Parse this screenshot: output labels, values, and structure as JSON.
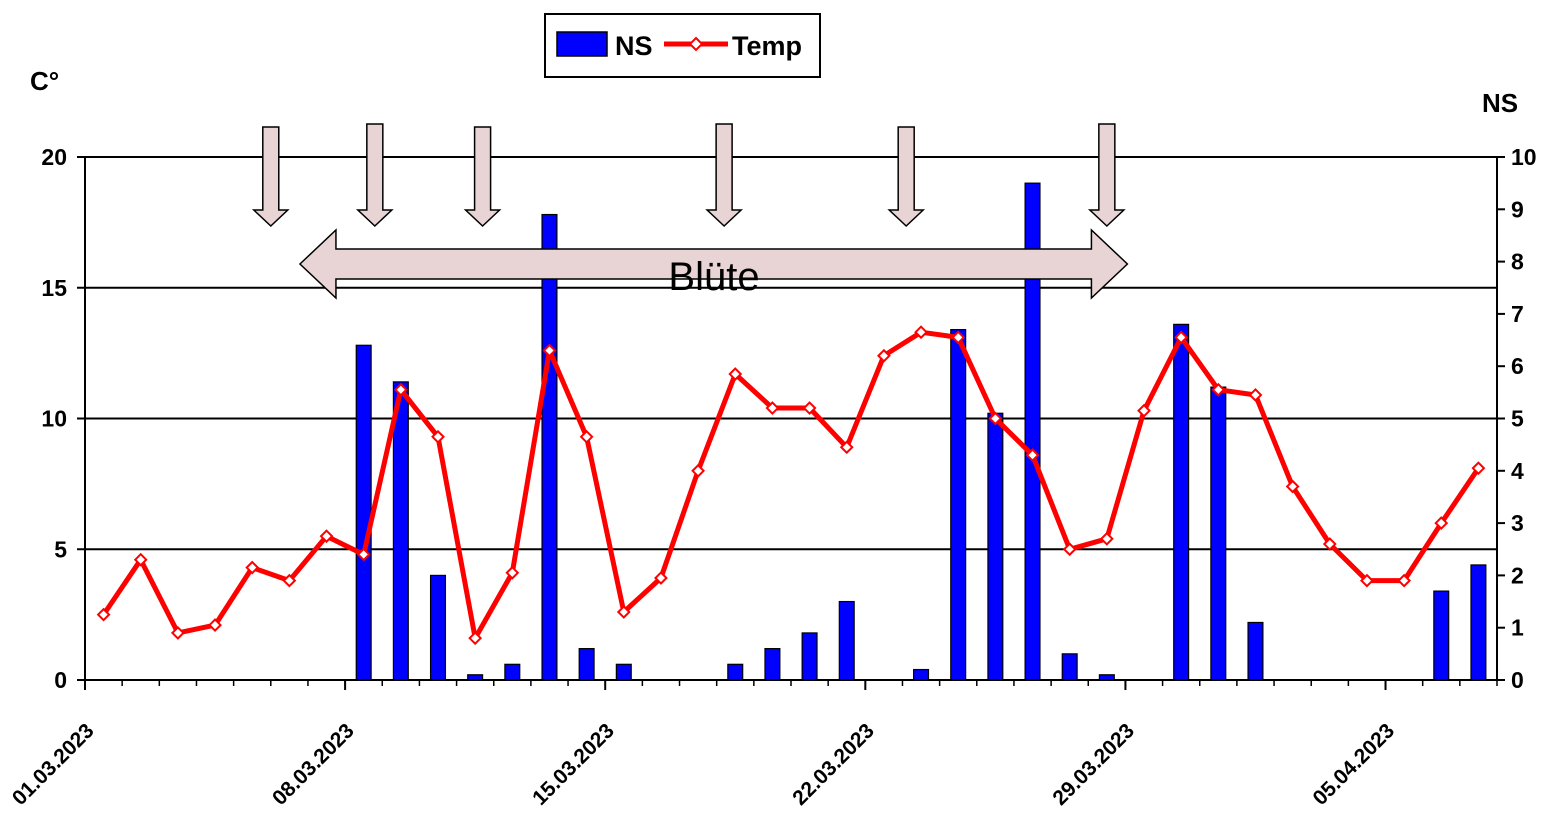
{
  "chart_data": {
    "type": "bar+line",
    "x": [
      "01.03.2023",
      "02.03.2023",
      "03.03.2023",
      "04.03.2023",
      "05.03.2023",
      "06.03.2023",
      "07.03.2023",
      "08.03.2023",
      "09.03.2023",
      "10.03.2023",
      "11.03.2023",
      "12.03.2023",
      "13.03.2023",
      "14.03.2023",
      "15.03.2023",
      "16.03.2023",
      "17.03.2023",
      "18.03.2023",
      "19.03.2023",
      "20.03.2023",
      "21.03.2023",
      "22.03.2023",
      "23.03.2023",
      "24.03.2023",
      "25.03.2023",
      "26.03.2023",
      "27.03.2023",
      "28.03.2023",
      "29.03.2023",
      "30.03.2023",
      "31.03.2023",
      "01.04.2023",
      "02.04.2023",
      "03.04.2023",
      "04.04.2023",
      "05.04.2023",
      "06.04.2023",
      "07.04.2023"
    ],
    "x_tick_labels": [
      "01.03.2023",
      "08.03.2023",
      "15.03.2023",
      "22.03.2023",
      "29.03.2023",
      "05.04.2023"
    ],
    "x_tick_label_indices": [
      0,
      7,
      14,
      21,
      28,
      35
    ],
    "series": [
      {
        "name": "NS",
        "type": "bar",
        "axis": "right",
        "color": "#0000ff",
        "values": [
          0,
          0,
          0,
          0,
          0,
          0,
          0,
          6.4,
          5.7,
          2.0,
          0.1,
          0.3,
          8.9,
          0.6,
          0.3,
          0,
          0,
          0.3,
          0.6,
          0.9,
          1.5,
          0,
          0.2,
          6.7,
          5.1,
          9.5,
          0.5,
          0.1,
          0,
          6.8,
          5.6,
          1.1,
          0,
          0,
          0,
          0,
          1.7,
          2.2
        ]
      },
      {
        "name": "Temp",
        "type": "line",
        "axis": "left",
        "color": "#ff0000",
        "values": [
          2.5,
          4.6,
          1.8,
          2.1,
          4.3,
          3.8,
          5.5,
          4.8,
          11.1,
          9.3,
          1.6,
          4.1,
          12.6,
          9.3,
          2.6,
          3.9,
          8.0,
          11.7,
          10.4,
          10.4,
          8.9,
          12.4,
          13.3,
          13.1,
          10.0,
          8.6,
          5.0,
          5.4,
          10.3,
          13.1,
          11.1,
          10.9,
          7.4,
          5.2,
          3.8,
          3.8,
          6.0,
          8.1
        ]
      }
    ],
    "y_left": {
      "label": "C°",
      "range": [
        0,
        20
      ],
      "ticks": [
        "0",
        "5",
        "10",
        "15",
        "20"
      ]
    },
    "y_right": {
      "label": "NS",
      "range": [
        0,
        10
      ],
      "ticks": [
        "0",
        "1",
        "2",
        "3",
        "4",
        "5",
        "6",
        "7",
        "8",
        "9",
        "10"
      ]
    },
    "grid": true,
    "legend": {
      "position": "top-center",
      "entries": [
        "NS",
        "Temp"
      ]
    },
    "annotations": {
      "bloom_label": "Blüte",
      "bloom_span_days": [
        5.5,
        27.5
      ],
      "marker_days": [
        4.5,
        7.3,
        10.2,
        16.7,
        21.6,
        27.0
      ]
    }
  }
}
